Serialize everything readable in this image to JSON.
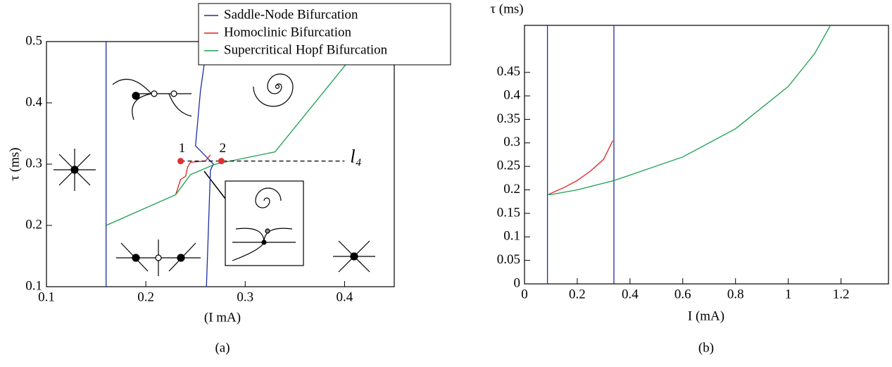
{
  "chart_data": [
    {
      "type": "line",
      "caption": "(a)",
      "xlabel": "(I mA)",
      "ylabel": "τ  (ms)",
      "xlim": [
        0.1,
        0.45
      ],
      "ylim": [
        0.1,
        0.5
      ],
      "xticks": [
        0.1,
        0.2,
        0.3,
        0.4
      ],
      "yticks": [
        0.1,
        0.2,
        0.3,
        0.4,
        0.5
      ],
      "legend": "top",
      "series": [
        {
          "name": "Saddle-Node Bifurcation",
          "color": "#1a2fa0",
          "x": [
            0.16,
            0.16,
            null,
            0.262,
            0.255,
            0.25,
            0.262,
            0.268,
            0.265,
            0.261
          ],
          "values": [
            0.5,
            0.1,
            null,
            0.5,
            0.42,
            0.33,
            0.31,
            0.3,
            0.29,
            0.1
          ]
        },
        {
          "name": "Homoclinic Bifurcation",
          "color": "#e02020",
          "x": [
            0.23,
            0.232,
            0.235,
            0.24,
            0.242,
            0.245,
            0.26,
            0.265
          ],
          "values": [
            0.25,
            0.26,
            0.275,
            0.28,
            0.295,
            0.303,
            0.305,
            0.315
          ]
        },
        {
          "name": "Supercritical Hopf Bifurcation",
          "color": "#1aa050",
          "x": [
            0.16,
            0.23,
            0.245,
            0.27,
            0.33,
            0.42
          ],
          "values": [
            0.2,
            0.25,
            0.283,
            0.3,
            0.32,
            0.5
          ]
        }
      ],
      "markers": {
        "x": [
          0.235,
          0.276
        ],
        "values": [
          0.305,
          0.305
        ],
        "labels": [
          "1",
          "2"
        ],
        "color": "#e03030"
      },
      "reference_line": {
        "x": [
          0.235,
          0.4
        ],
        "value": 0.305,
        "label": "l₄"
      }
    },
    {
      "type": "line",
      "caption": "(b)",
      "xlabel": "I (mA)",
      "ylabel": "τ (ms)",
      "xlim": [
        0,
        1.38
      ],
      "ylim": [
        0,
        0.55
      ],
      "xticks": [
        0,
        0.2,
        0.4,
        0.6,
        0.8,
        1,
        1.2
      ],
      "yticks": [
        0,
        0.05,
        0.1,
        0.15,
        0.2,
        0.25,
        0.3,
        0.35,
        0.4,
        0.45
      ],
      "series": [
        {
          "color": "#1a2fa0",
          "x": [
            0.087,
            0.087,
            null,
            0.339,
            0.339
          ],
          "values": [
            0,
            0.55,
            null,
            0,
            0.55
          ]
        },
        {
          "color": "#e02020",
          "x": [
            0.09,
            0.15,
            0.2,
            0.25,
            0.3,
            0.335
          ],
          "values": [
            0.19,
            0.205,
            0.22,
            0.24,
            0.265,
            0.305
          ]
        },
        {
          "color": "#1aa050",
          "x": [
            0.09,
            0.1,
            0.2,
            0.34,
            0.6,
            0.8,
            1.0,
            1.1,
            1.16
          ],
          "values": [
            0.19,
            0.19,
            0.2,
            0.22,
            0.27,
            0.33,
            0.42,
            0.49,
            0.55
          ]
        }
      ]
    }
  ]
}
